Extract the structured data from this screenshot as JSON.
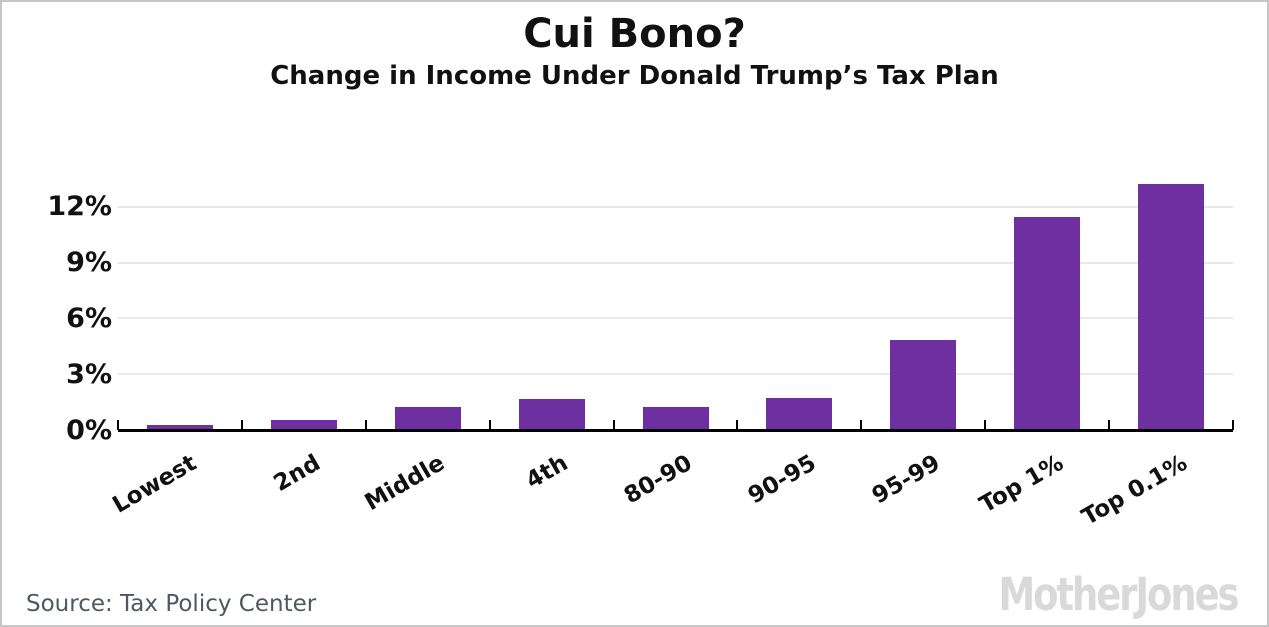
{
  "header": {
    "title": "Cui Bono?",
    "subtitle": "Change in Income Under Donald Trump’s Tax Plan"
  },
  "footer": {
    "source": "Source: Tax Policy Center",
    "brand": "MotherJones"
  },
  "colors": {
    "bar": "#6e2fa0",
    "gridline": "#e8e8e8",
    "axis": "#000000",
    "text": "#111111",
    "source_text": "#4f5861",
    "brand_gray": "#d9d9d9",
    "card_border": "#c6c6c6"
  },
  "chart_data": {
    "type": "bar",
    "title": "Cui Bono?",
    "subtitle": "Change in Income Under Donald Trump’s Tax Plan",
    "categories": [
      "Lowest",
      "2nd",
      "Middle",
      "4th",
      "80-90",
      "90-95",
      "95-99",
      "Top 1%",
      "Top 0.1%"
    ],
    "values": [
      0.3,
      0.6,
      1.3,
      1.7,
      1.3,
      1.8,
      4.9,
      11.5,
      13.3
    ],
    "xlabel": "",
    "ylabel": "",
    "ylim": [
      0,
      13.5
    ],
    "yticks": [
      0,
      3,
      6,
      9,
      12
    ],
    "ytick_labels": [
      "0%",
      "3%",
      "6%",
      "9%",
      "12%"
    ],
    "grid": "horizontal",
    "bar_color": "#6e2fa0",
    "legend": null
  }
}
